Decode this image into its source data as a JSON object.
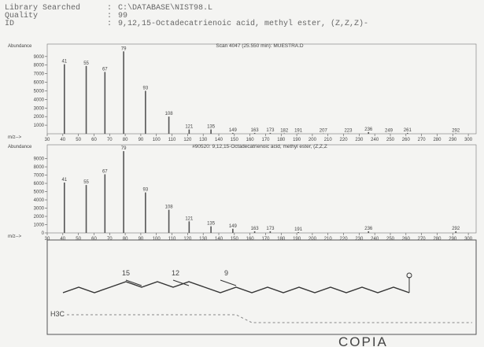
{
  "header": {
    "separator": ":",
    "rows": [
      {
        "label": "Library Searched",
        "value": "C:\\DATABASE\\NIST98.L"
      },
      {
        "label": "Quality",
        "value": "99"
      },
      {
        "label": "ID",
        "value": "9,12,15-Octadecatrienoic acid, methyl ester, (Z,Z,Z)-"
      }
    ]
  },
  "chart_data": [
    {
      "type": "bar",
      "title": "Scan 4047 (25.550 min): MUESTRA.D",
      "y_label": "Abundance",
      "x_label": "m/z-->",
      "x": [
        41,
        55,
        67,
        79,
        93,
        108,
        121,
        135,
        149,
        163,
        173,
        182,
        191,
        207,
        223,
        236,
        249,
        261,
        292
      ],
      "values": [
        8100,
        7900,
        7200,
        9600,
        5000,
        2000,
        500,
        500,
        100,
        100,
        100,
        50,
        50,
        30,
        30,
        200,
        30,
        100,
        50
      ],
      "color": "#555555",
      "xlim": [
        30,
        305
      ],
      "ylim": [
        0,
        9900
      ],
      "xticks": [
        30,
        40,
        50,
        60,
        70,
        80,
        90,
        100,
        110,
        120,
        130,
        140,
        150,
        160,
        170,
        180,
        190,
        200,
        210,
        220,
        230,
        240,
        250,
        260,
        270,
        280,
        290,
        300
      ],
      "yticks": [
        1000,
        2000,
        3000,
        4000,
        5000,
        6000,
        7000,
        8000,
        9000
      ]
    },
    {
      "type": "bar",
      "title": "#90520: 9,12,15-Octadecatrienoic acid, methyl ester, (Z,Z,Z",
      "y_label": "Abundance",
      "x_label": "m/z-->",
      "x": [
        41,
        55,
        67,
        79,
        93,
        108,
        121,
        135,
        149,
        163,
        173,
        191,
        236,
        292
      ],
      "values": [
        6100,
        5800,
        7100,
        9900,
        4900,
        2800,
        1400,
        800,
        500,
        200,
        200,
        100,
        200,
        200
      ],
      "color": "#555555",
      "xlim": [
        30,
        305
      ],
      "ylim": [
        0,
        10100
      ],
      "xticks": [
        30,
        40,
        50,
        60,
        70,
        80,
        90,
        100,
        110,
        120,
        130,
        140,
        150,
        160,
        170,
        180,
        190,
        200,
        210,
        220,
        230,
        240,
        250,
        260,
        270,
        280,
        290,
        300
      ],
      "yticks": [
        0,
        1000,
        2000,
        3000,
        4000,
        5000,
        6000,
        7000,
        8000,
        9000
      ]
    }
  ],
  "structure": {
    "labels": [
      "15",
      "12",
      "9",
      "H3C"
    ],
    "stamp": "COPIA"
  }
}
